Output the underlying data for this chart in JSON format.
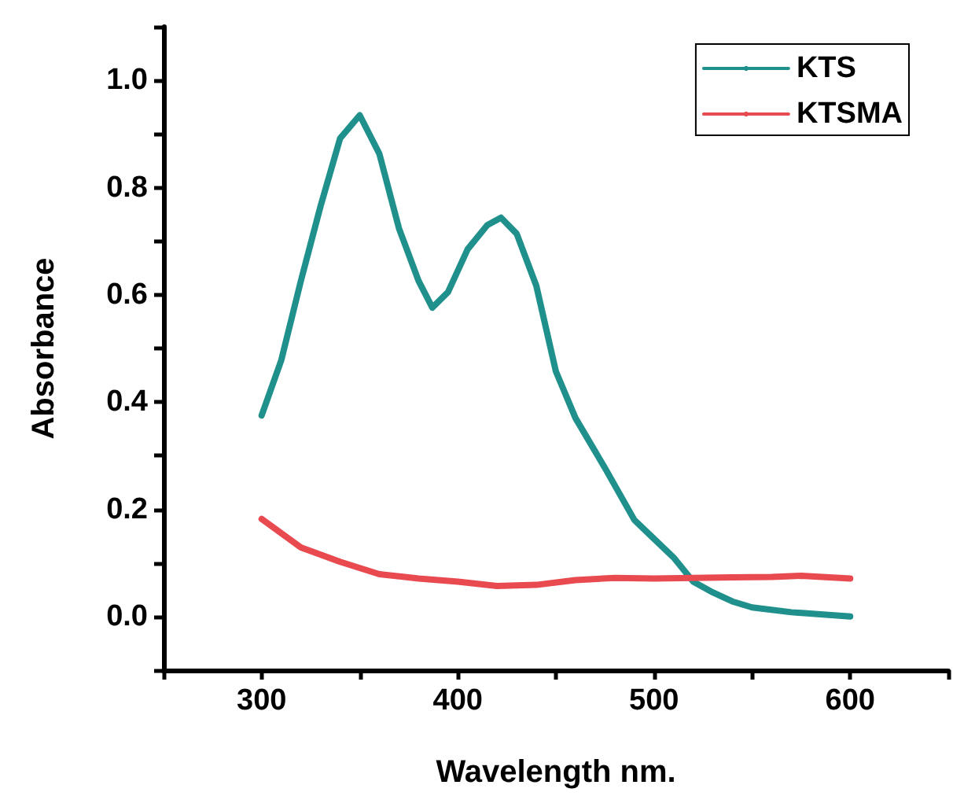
{
  "chart_data": {
    "type": "line",
    "xlabel": "Wavelength nm.",
    "ylabel": "Absorbance",
    "xlim": [
      250,
      650
    ],
    "xticks": [
      {
        "value": 250,
        "label": null
      },
      300,
      {
        "value": 350,
        "label": null
      },
      400,
      {
        "value": 450,
        "label": null
      },
      500,
      {
        "value": 550,
        "label": null
      },
      600,
      {
        "value": 650,
        "label": null
      }
    ],
    "ylim": [
      -0.1,
      1.1
    ],
    "yticks": [
      {
        "value": -0.1,
        "label": null
      },
      {
        "value": 0,
        "label": "0.0"
      },
      {
        "value": 0.1,
        "label": null
      },
      0.2,
      {
        "value": 0.3,
        "label": null
      },
      0.4,
      {
        "value": 0.5,
        "label": null
      },
      0.6,
      {
        "value": 0.7,
        "label": null
      },
      0.8,
      {
        "value": 0.9,
        "label": null
      },
      {
        "value": 1.0,
        "label": "1.0"
      },
      {
        "value": 1.1,
        "label": null
      }
    ],
    "grid": false,
    "legend": "top right",
    "marker": "none",
    "line_style": "solid",
    "series": [
      {
        "name": "KTS",
        "color": "#1f908b",
        "x": [
          300,
          310,
          320,
          330,
          340,
          350,
          360,
          370,
          380,
          387,
          395,
          405,
          415,
          422,
          430,
          440,
          450,
          460,
          475,
          490,
          500,
          510,
          520,
          530,
          540,
          550,
          570,
          600
        ],
        "values": [
          0.375,
          0.478,
          0.626,
          0.765,
          0.892,
          0.935,
          0.863,
          0.724,
          0.626,
          0.576,
          0.605,
          0.685,
          0.73,
          0.744,
          0.714,
          0.617,
          0.457,
          0.37,
          0.277,
          0.18,
          0.145,
          0.11,
          0.065,
          0.045,
          0.028,
          0.017,
          0.008,
          0.0
        ]
      },
      {
        "name": "KTSMA",
        "color": "#e84a50",
        "x": [
          300,
          320,
          340,
          360,
          380,
          400,
          420,
          440,
          460,
          480,
          500,
          520,
          540,
          560,
          575,
          600
        ],
        "values": [
          0.182,
          0.129,
          0.102,
          0.079,
          0.071,
          0.065,
          0.057,
          0.059,
          0.068,
          0.072,
          0.071,
          0.072,
          0.073,
          0.074,
          0.076,
          0.071
        ]
      }
    ]
  }
}
